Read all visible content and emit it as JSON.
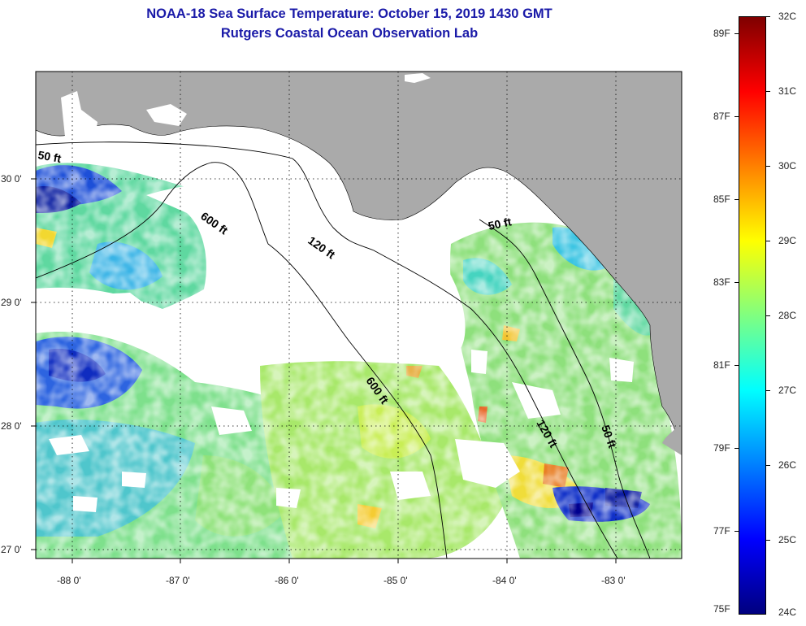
{
  "title": {
    "line1": "NOAA-18 Sea Surface Temperature:  October 15, 2019 1430 GMT",
    "line2": "Rutgers Coastal Ocean Observation Lab"
  },
  "map": {
    "lat_ticks": [
      "30 0'",
      "29 0'",
      "28 0'",
      "27 0'"
    ],
    "lon_ticks": [
      "-88 0'",
      "-87 0'",
      "-86 0'",
      "-85 0'",
      "-84 0'",
      "-83 0'"
    ],
    "contours": [
      "50 ft",
      "600 ft",
      "120 ft",
      "50 ft",
      "600 ft",
      "120 ft",
      "50 ft"
    ],
    "colors": {
      "land": "#aaaaaa",
      "cloud": "#ffffff",
      "frame": "#000000"
    }
  },
  "colorbar": {
    "celsius": [
      "32C",
      "31C",
      "30C",
      "29C",
      "28C",
      "27C",
      "26C",
      "25C",
      "24C"
    ],
    "fahrenheit": [
      "89F",
      "87F",
      "85F",
      "83F",
      "81F",
      "79F",
      "77F",
      "75F"
    ],
    "stops": [
      "#7f0000",
      "#ff0000",
      "#ff8000",
      "#ffff00",
      "#80ff80",
      "#00ffff",
      "#0080ff",
      "#0000ff",
      "#00007f"
    ]
  }
}
